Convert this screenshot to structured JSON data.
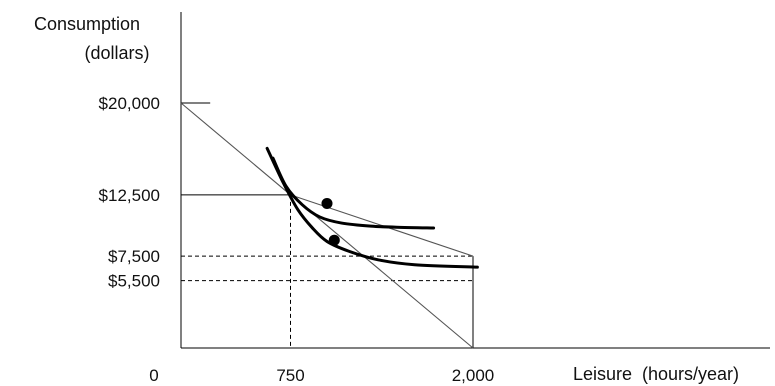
{
  "chart_data": {
    "type": "line",
    "title": "",
    "ylabel_line1": "Consumption",
    "ylabel_line2": "(dollars)",
    "xlabel": "Leisure  (hours/year)",
    "xlim": [
      0,
      2000
    ],
    "ylim": [
      0,
      20000
    ],
    "grid": false,
    "x_ticks": [
      {
        "value": 750,
        "label": "750"
      },
      {
        "value": 2000,
        "label": "2,000"
      }
    ],
    "origin_label": "0",
    "y_ticks": [
      {
        "value": 20000,
        "label": "$20,000"
      },
      {
        "value": 12500,
        "label": "$12,500"
      },
      {
        "value": 7500,
        "label": "$7,500"
      },
      {
        "value": 5500,
        "label": "$5,500"
      }
    ],
    "series": [
      {
        "kind": "budget_line",
        "points": [
          [
            0,
            20000
          ],
          [
            2000,
            0
          ]
        ]
      },
      {
        "kind": "budget_line",
        "points": [
          [
            750,
            12500
          ],
          [
            2000,
            7500
          ]
        ]
      },
      {
        "kind": "indifference_curve",
        "points": [
          [
            630,
            15500
          ],
          [
            720,
            13200
          ],
          [
            830,
            11700
          ],
          [
            950,
            10700
          ],
          [
            1100,
            10200
          ],
          [
            1300,
            9950
          ],
          [
            1500,
            9850
          ],
          [
            1730,
            9800
          ]
        ]
      },
      {
        "kind": "indifference_curve",
        "points": [
          [
            590,
            16300
          ],
          [
            700,
            13500
          ],
          [
            800,
            11300
          ],
          [
            900,
            9800
          ],
          [
            1000,
            8700
          ],
          [
            1150,
            7900
          ],
          [
            1350,
            7200
          ],
          [
            1600,
            6800
          ],
          [
            2030,
            6600
          ]
        ]
      }
    ],
    "points": [
      {
        "x": 1000,
        "y": 11800
      },
      {
        "x": 1050,
        "y": 8800
      }
    ],
    "reference_lines": [
      {
        "from": [
          0,
          12500
        ],
        "to": [
          750,
          12500
        ],
        "style": "solid"
      },
      {
        "from": [
          750,
          12500
        ],
        "to": [
          750,
          0
        ],
        "style": "dashed"
      },
      {
        "from": [
          0,
          7500
        ],
        "to": [
          2000,
          7500
        ],
        "style": "dashed"
      },
      {
        "from": [
          0,
          5500
        ],
        "to": [
          2000,
          5500
        ],
        "style": "dashed"
      },
      {
        "from": [
          2000,
          7500
        ],
        "to": [
          2000,
          0
        ],
        "style": "solid"
      },
      {
        "from": [
          0,
          20000
        ],
        "to": [
          200,
          20000
        ],
        "style": "solid"
      }
    ]
  }
}
